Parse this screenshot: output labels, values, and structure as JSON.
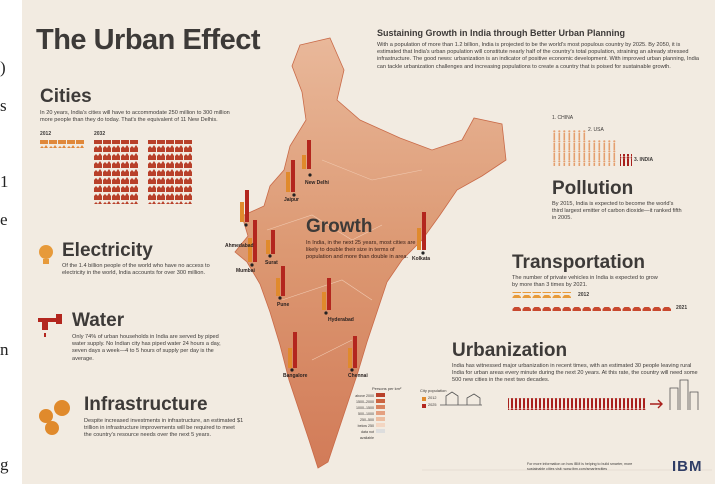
{
  "edge_fragments": [
    ")",
    "s",
    "1",
    "e",
    "n",
    "g"
  ],
  "header": {
    "title": "The Urban Effect"
  },
  "intro": {
    "title": "Sustaining Growth in India through Better Urban Planning",
    "body": "With a population of more than 1.2 billion, India is projected to be the world's most populous country by 2025. By 2050, it is estimated that India's urban population will constitute nearly half of the country's total population, straining an already stressed infrastructure. The good news: urbanization is an indicator of positive economic development. With improved urban planning, India can tackle urbanization challenges and increasing populations to create a country that is poised for sustainable growth."
  },
  "cities": {
    "title": "Cities",
    "body": "In 20 years, India's cities will have to accommodate 250 million to 300 million more people than they do today. That's the equivalent of 11 New Delhis.",
    "years": [
      "2012",
      "2032"
    ]
  },
  "electricity": {
    "title": "Electricity",
    "body": "Of the 1.4 billion people of the world who have no access to electricity in the world, India accounts for over 300 million."
  },
  "water": {
    "title": "Water",
    "body": "Only 74% of urban households in India are served by piped water supply. No Indian city has piped water 24 hours a day, seven days a week—4 to 5 hours of supply per day is the average."
  },
  "infrastructure": {
    "title": "Infrastructure",
    "body": "Despite increased investments in infrastructure, an estimated $1 trillion in infrastructure improvements will be required to meet the country's resource needs over the next 5 years."
  },
  "growth": {
    "title": "Growth",
    "body": "In India, in the next 25 years, most cities are likely to double their size in terms of population and more than double in area."
  },
  "map": {
    "cities": [
      "New Delhi",
      "Jaipur",
      "Ahmedabad",
      "Surat",
      "Mumbai",
      "Pune",
      "Kolkata",
      "Hyderabad",
      "Bangalore",
      "Chennai"
    ],
    "density_legend": {
      "title": "Persons per km²",
      "items": [
        "above 2000",
        "1500–2000",
        "1000–1500",
        "500–1000",
        "250–500",
        "below 250",
        "data not available"
      ]
    },
    "population_legend": {
      "title": "City population",
      "items": [
        "2012",
        "2025"
      ]
    }
  },
  "pollution": {
    "title": "Pollution",
    "ranks": [
      "1. CHINA",
      "2. USA",
      "3. INDIA"
    ],
    "body": "By 2015, India is expected to become the world's third largest emitter of carbon dioxide—it ranked fifth in 2005."
  },
  "transportation": {
    "title": "Transportation",
    "body": "The number of private vehicles in India is expected to grow by more than 3 times by 2021.",
    "years": [
      "2012",
      "2021"
    ]
  },
  "urbanization": {
    "title": "Urbanization",
    "body": "India has witnessed major urbanization in recent times, with an estimated 30 people leaving rural India for urban areas every minute during the next 20 years. At this rate, the country will need some 500 new cities in the next two decades."
  },
  "footer": {
    "note": "For more information on how IBM is helping to build smarter, more sustainable cities visit: www.ibm.com/smartercities",
    "logo": "IBM"
  }
}
